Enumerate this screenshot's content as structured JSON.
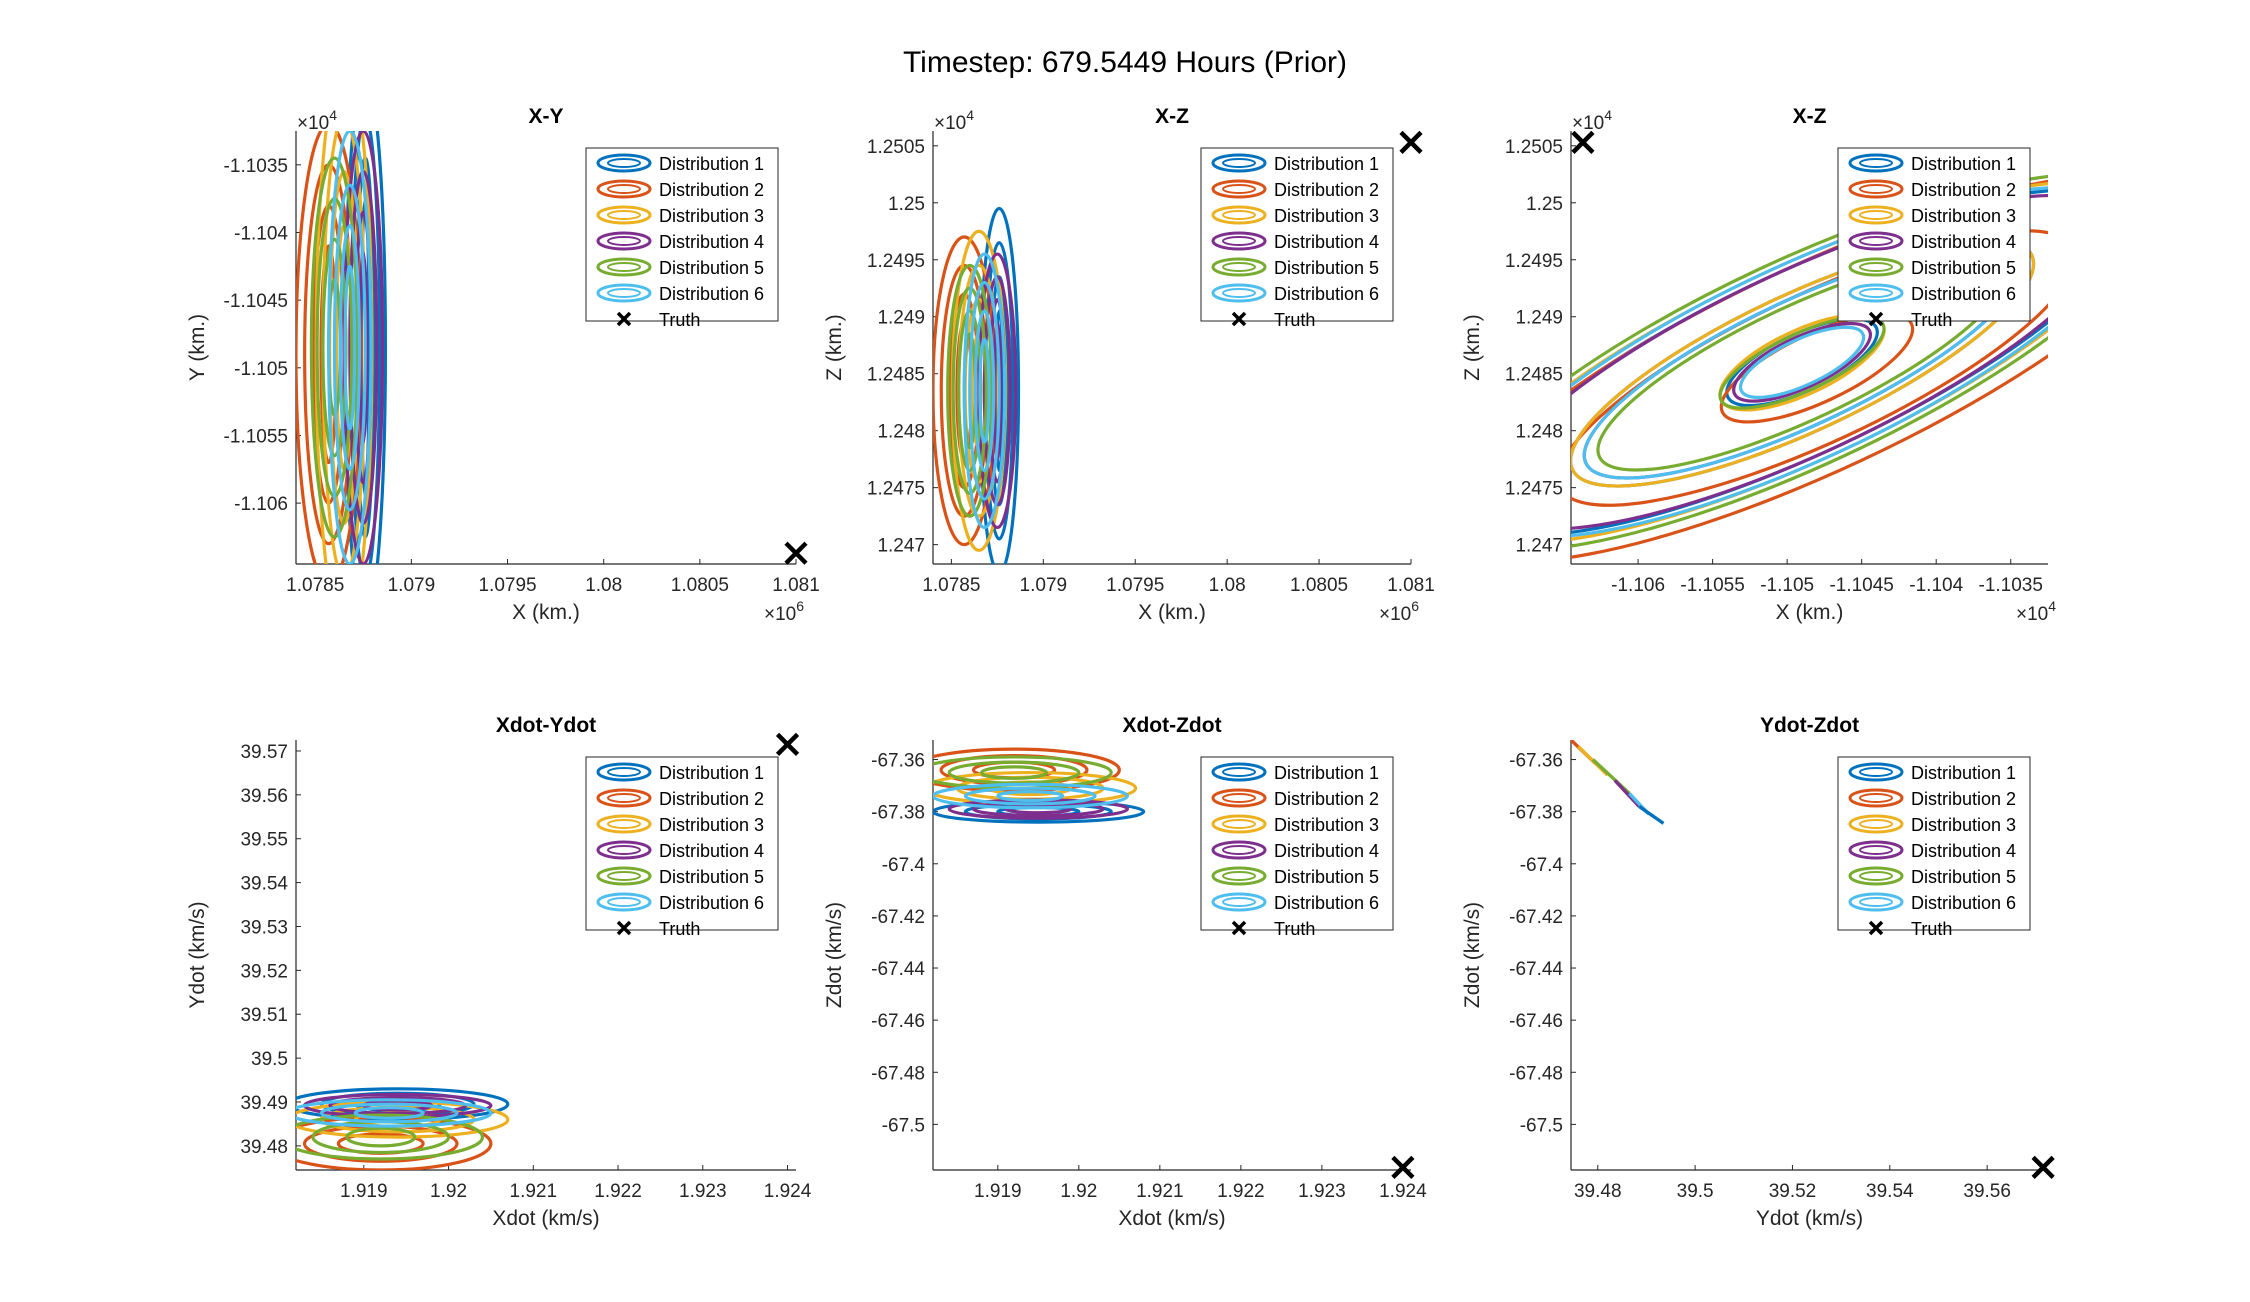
{
  "figure_title": "Timestep: 679.5449 Hours (Prior)",
  "colors": {
    "Distribution 1": "#0072BD",
    "Distribution 2": "#D95319",
    "Distribution 3": "#EDB120",
    "Distribution 4": "#7E2F8E",
    "Distribution 5": "#77AC30",
    "Distribution 6": "#4DBEEE",
    "Truth": "#000000"
  },
  "chart_data": [
    {
      "type": "scatter",
      "title": "X-Y",
      "xlabel": "X (km.)",
      "ylabel": "Y (km.)",
      "x_exponent": "6",
      "y_exponent": "4",
      "xlim": [
        1.0784,
        1.081
      ],
      "ylim": [
        -1.10645,
        -1.10325
      ],
      "xticks": [
        "1.0785",
        "1.079",
        "1.0795",
        "1.08",
        "1.0805",
        "1.081"
      ],
      "xtick_values": [
        1.0785,
        1.079,
        1.0795,
        1.08,
        1.0805,
        1.081
      ],
      "yticks": [
        "-1.1035",
        "-1.104",
        "-1.1045",
        "-1.105",
        "-1.1055",
        "-1.106"
      ],
      "ytick_values": [
        -1.1035,
        -1.104,
        -1.1045,
        -1.105,
        -1.1055,
        -1.106
      ],
      "legend": [
        "Distribution 1",
        "Distribution 2",
        "Distribution 3",
        "Distribution 4",
        "Distribution 5",
        "Distribution 6",
        "Truth"
      ],
      "legend_location": "top-right",
      "truth": [
        1.081,
        -1.10637
      ],
      "ellipses": [
        {
          "series": "Distribution 1",
          "cx": 1.07876,
          "cy": -1.10485,
          "rx": [
            0.000105,
            7.5e-05,
            4.5e-05,
            2e-05
          ],
          "ry": [
            0.002,
            0.0017,
            0.0014,
            0.0011
          ],
          "tilt": 0
        },
        {
          "series": "Distribution 2",
          "cx": 1.07857,
          "cy": -1.1049,
          "rx": [
            0.00017,
            0.000125,
            8e-05,
            4e-05
          ],
          "ry": [
            0.0017,
            0.0014,
            0.0011,
            0.0008
          ],
          "tilt": 0
        },
        {
          "series": "Distribution 3",
          "cx": 1.07865,
          "cy": -1.10485,
          "rx": [
            0.000145,
            0.00011,
            7.5e-05,
            4e-05
          ],
          "ry": [
            0.0021,
            0.0017,
            0.0013,
            0.0009
          ],
          "tilt": 0
        },
        {
          "series": "Distribution 4",
          "cx": 1.07875,
          "cy": -1.10485,
          "rx": [
            0.0001,
            7e-05,
            4e-05,
            1.8e-05
          ],
          "ry": [
            0.0016,
            0.0013,
            0.001,
            0.0007
          ],
          "tilt": 0
        },
        {
          "series": "Distribution 5",
          "cx": 1.0786,
          "cy": -1.10485,
          "rx": [
            0.00012,
            9e-05,
            6e-05,
            3e-05
          ],
          "ry": [
            0.0014,
            0.0011,
            0.0008,
            0.0005
          ],
          "tilt": 0
        },
        {
          "series": "Distribution 6",
          "cx": 1.07868,
          "cy": -1.10485,
          "rx": [
            0.00011,
            8e-05,
            5e-05,
            2.5e-05
          ],
          "ry": [
            0.0016,
            0.0012,
            0.0009,
            0.0006
          ],
          "tilt": 0
        }
      ]
    },
    {
      "type": "scatter",
      "title": "X-Z",
      "xlabel": "X (km.)",
      "ylabel": "Z (km.)",
      "x_exponent": "6",
      "y_exponent": "4",
      "xlim": [
        1.0784,
        1.081
      ],
      "ylim": [
        1.24683,
        1.25063
      ],
      "xticks": [
        "1.0785",
        "1.079",
        "1.0795",
        "1.08",
        "1.0805",
        "1.081"
      ],
      "xtick_values": [
        1.0785,
        1.079,
        1.0795,
        1.08,
        1.0805,
        1.081
      ],
      "yticks": [
        "1.247",
        "1.2475",
        "1.248",
        "1.2485",
        "1.249",
        "1.2495",
        "1.25",
        "1.2505"
      ],
      "ytick_values": [
        1.247,
        1.2475,
        1.248,
        1.2485,
        1.249,
        1.2495,
        1.25,
        1.2505
      ],
      "legend": [
        "Distribution 1",
        "Distribution 2",
        "Distribution 3",
        "Distribution 4",
        "Distribution 5",
        "Distribution 6",
        "Truth"
      ],
      "legend_location": "top-right",
      "truth": [
        1.081,
        1.25053
      ],
      "ellipses": [
        {
          "series": "Distribution 1",
          "cx": 1.07876,
          "cy": 1.24835,
          "rx": [
            0.000105,
            7.5e-05,
            4.5e-05,
            2e-05
          ],
          "ry": [
            0.0016,
            0.0013,
            0.001,
            0.0007
          ],
          "tilt": 0
        },
        {
          "series": "Distribution 2",
          "cx": 1.07857,
          "cy": 1.24835,
          "rx": [
            0.00017,
            0.000125,
            8e-05,
            4e-05
          ],
          "ry": [
            0.00135,
            0.0011,
            0.00085,
            0.0006
          ],
          "tilt": 0
        },
        {
          "series": "Distribution 3",
          "cx": 1.07865,
          "cy": 1.24835,
          "rx": [
            0.000145,
            0.00011,
            7.5e-05,
            4e-05
          ],
          "ry": [
            0.0014,
            0.0011,
            0.0008,
            0.0005
          ],
          "tilt": 0
        },
        {
          "series": "Distribution 4",
          "cx": 1.07875,
          "cy": 1.24835,
          "rx": [
            0.0001,
            7e-05,
            4e-05,
            1.8e-05
          ],
          "ry": [
            0.0012,
            0.001,
            0.0008,
            0.0006
          ],
          "tilt": 0
        },
        {
          "series": "Distribution 5",
          "cx": 1.0786,
          "cy": 1.24835,
          "rx": [
            0.00012,
            9e-05,
            6e-05,
            3e-05
          ],
          "ry": [
            0.0011,
            0.0009,
            0.0007,
            0.0005
          ],
          "tilt": 0
        },
        {
          "series": "Distribution 6",
          "cx": 1.07868,
          "cy": 1.24835,
          "rx": [
            0.00011,
            8e-05,
            5e-05,
            2.5e-05
          ],
          "ry": [
            0.0012,
            0.00095,
            0.0007,
            0.00045
          ],
          "tilt": 0
        }
      ]
    },
    {
      "type": "scatter",
      "title": "X-Z",
      "xlabel": "X (km.)",
      "ylabel": "Z (km.)",
      "x_exponent": "4",
      "y_exponent": "4",
      "xlim": [
        -1.10645,
        -1.10325
      ],
      "ylim": [
        1.24683,
        1.25063
      ],
      "xticks": [
        "-1.106",
        "-1.1055",
        "-1.105",
        "-1.1045",
        "-1.104",
        "-1.1035"
      ],
      "xtick_values": [
        -1.106,
        -1.1055,
        -1.105,
        -1.1045,
        -1.104,
        -1.1035
      ],
      "yticks": [
        "1.247",
        "1.2475",
        "1.248",
        "1.2485",
        "1.249",
        "1.2495",
        "1.25",
        "1.2505"
      ],
      "ytick_values": [
        1.247,
        1.2475,
        1.248,
        1.2485,
        1.249,
        1.2495,
        1.25,
        1.2505
      ],
      "legend": [
        "Distribution 1",
        "Distribution 2",
        "Distribution 3",
        "Distribution 4",
        "Distribution 5",
        "Distribution 6",
        "Truth"
      ],
      "legend_location": "top-right",
      "truth": [
        -1.10637,
        1.25053
      ],
      "ellipses": [
        {
          "series": "Distribution 1",
          "cx": -1.1049,
          "cy": 1.2486,
          "rx": [
            0.0024,
            0.0017,
            0.00055
          ],
          "ry": [
            0.0008,
            0.0006,
            0.00025
          ],
          "tilt": -25
        },
        {
          "series": "Distribution 2",
          "cx": -1.1048,
          "cy": 1.24855,
          "rx": [
            0.0027,
            0.0019,
            0.0007
          ],
          "ry": [
            0.0009,
            0.00065,
            0.0003
          ],
          "tilt": -25
        },
        {
          "series": "Distribution 3",
          "cx": -1.1049,
          "cy": 1.2486,
          "rx": [
            0.0025,
            0.0017,
            0.0006
          ],
          "ry": [
            0.00085,
            0.0006,
            0.00028
          ],
          "tilt": -25
        },
        {
          "series": "Distribution 4",
          "cx": -1.1049,
          "cy": 1.2486,
          "rx": [
            0.0023,
            0.0016,
            0.0005
          ],
          "ry": [
            0.0008,
            0.00055,
            0.00022
          ],
          "tilt": -25
        },
        {
          "series": "Distribution 5",
          "cx": -1.1049,
          "cy": 1.2486,
          "rx": [
            0.0026,
            0.0015,
            0.0006
          ],
          "ry": [
            0.0009,
            0.0005,
            0.00025
          ],
          "tilt": -25
        },
        {
          "series": "Distribution 6",
          "cx": -1.1049,
          "cy": 1.2486,
          "rx": [
            0.0024,
            0.0016,
            0.00045
          ],
          "ry": [
            0.00085,
            0.00055,
            0.0002
          ],
          "tilt": -25
        }
      ]
    },
    {
      "type": "scatter",
      "title": "Xdot-Ydot",
      "xlabel": "Xdot (km/s)",
      "ylabel": "Ydot (km/s)",
      "xlim": [
        1.9182,
        1.9241
      ],
      "ylim": [
        39.4745,
        39.5725
      ],
      "xticks": [
        "1.919",
        "1.92",
        "1.921",
        "1.922",
        "1.923",
        "1.924"
      ],
      "xtick_values": [
        1.919,
        1.92,
        1.921,
        1.922,
        1.923,
        1.924
      ],
      "yticks": [
        "39.48",
        "39.49",
        "39.5",
        "39.51",
        "39.52",
        "39.53",
        "39.54",
        "39.55",
        "39.56",
        "39.57"
      ],
      "ytick_values": [
        39.48,
        39.49,
        39.5,
        39.51,
        39.52,
        39.53,
        39.54,
        39.55,
        39.56,
        39.57
      ],
      "legend": [
        "Distribution 1",
        "Distribution 2",
        "Distribution 3",
        "Distribution 4",
        "Distribution 5",
        "Distribution 6",
        "Truth"
      ],
      "legend_location": "top-right",
      "truth": [
        1.924,
        39.5715
      ],
      "ellipses": [
        {
          "series": "Distribution 1",
          "cx": 1.9194,
          "cy": 39.4895,
          "rx": [
            0.0013,
            0.0009,
            0.0005
          ],
          "ry": [
            0.0035,
            0.0025,
            0.0015
          ],
          "tilt": 0
        },
        {
          "series": "Distribution 2",
          "cx": 1.9192,
          "cy": 39.4805,
          "rx": [
            0.0013,
            0.0009,
            0.0005
          ],
          "ry": [
            0.006,
            0.004,
            0.0022
          ],
          "tilt": 0
        },
        {
          "series": "Distribution 3",
          "cx": 1.9194,
          "cy": 39.486,
          "rx": [
            0.0013,
            0.0009,
            0.0005
          ],
          "ry": [
            0.004,
            0.0028,
            0.0016
          ],
          "tilt": 0
        },
        {
          "series": "Distribution 4",
          "cx": 1.9194,
          "cy": 39.4892,
          "rx": [
            0.0011,
            0.0008,
            0.0004
          ],
          "ry": [
            0.0025,
            0.0018,
            0.001
          ],
          "tilt": 0
        },
        {
          "series": "Distribution 5",
          "cx": 1.9192,
          "cy": 39.482,
          "rx": [
            0.0012,
            0.0008,
            0.0004
          ],
          "ry": [
            0.005,
            0.0035,
            0.002
          ],
          "tilt": 0
        },
        {
          "series": "Distribution 6",
          "cx": 1.9193,
          "cy": 39.4875,
          "rx": [
            0.0012,
            0.0008,
            0.0004
          ],
          "ry": [
            0.003,
            0.002,
            0.0012
          ],
          "tilt": 0
        }
      ]
    },
    {
      "type": "scatter",
      "title": "Xdot-Zdot",
      "xlabel": "Xdot (km/s)",
      "ylabel": "Zdot (km/s)",
      "xlim": [
        1.9182,
        1.9241
      ],
      "ylim": [
        -67.5175,
        -67.3525
      ],
      "xticks": [
        "1.919",
        "1.92",
        "1.921",
        "1.922",
        "1.923",
        "1.924"
      ],
      "xtick_values": [
        1.919,
        1.92,
        1.921,
        1.922,
        1.923,
        1.924
      ],
      "yticks": [
        "-67.36",
        "-67.38",
        "-67.4",
        "-67.42",
        "-67.44",
        "-67.46",
        "-67.48",
        "-67.5"
      ],
      "ytick_values": [
        -67.36,
        -67.38,
        -67.4,
        -67.42,
        -67.44,
        -67.46,
        -67.48,
        -67.5
      ],
      "legend": [
        "Distribution 1",
        "Distribution 2",
        "Distribution 3",
        "Distribution 4",
        "Distribution 5",
        "Distribution 6",
        "Truth"
      ],
      "legend_location": "top-right",
      "truth": [
        1.924,
        -67.5165
      ],
      "ellipses": [
        {
          "series": "Distribution 1",
          "cx": 1.9195,
          "cy": -67.38,
          "rx": [
            0.0013,
            0.0009,
            0.0005
          ],
          "ry": [
            0.004,
            0.0028,
            0.0016
          ],
          "tilt": 0
        },
        {
          "series": "Distribution 2",
          "cx": 1.9192,
          "cy": -67.364,
          "rx": [
            0.0013,
            0.0009,
            0.0005
          ],
          "ry": [
            0.008,
            0.0055,
            0.003
          ],
          "tilt": 0
        },
        {
          "series": "Distribution 3",
          "cx": 1.9194,
          "cy": -67.371,
          "rx": [
            0.0013,
            0.0009,
            0.0005
          ],
          "ry": [
            0.006,
            0.0042,
            0.0024
          ],
          "tilt": 0
        },
        {
          "series": "Distribution 4",
          "cx": 1.9195,
          "cy": -67.379,
          "rx": [
            0.0011,
            0.0008,
            0.0004
          ],
          "ry": [
            0.0035,
            0.0025,
            0.0014
          ],
          "tilt": 0
        },
        {
          "series": "Distribution 5",
          "cx": 1.9192,
          "cy": -67.365,
          "rx": [
            0.0012,
            0.0008,
            0.0004
          ],
          "ry": [
            0.006,
            0.004,
            0.0022
          ],
          "tilt": 0
        },
        {
          "series": "Distribution 6",
          "cx": 1.9194,
          "cy": -67.374,
          "rx": [
            0.0012,
            0.0008,
            0.0004
          ],
          "ry": [
            0.0045,
            0.003,
            0.0017
          ],
          "tilt": 0
        }
      ]
    },
    {
      "type": "line",
      "title": "Ydot-Zdot",
      "xlabel": "Ydot (km/s)",
      "ylabel": "Zdot (km/s)",
      "xlim": [
        39.4745,
        39.5725
      ],
      "ylim": [
        -67.5175,
        -67.3525
      ],
      "xticks": [
        "39.48",
        "39.5",
        "39.52",
        "39.54",
        "39.56"
      ],
      "xtick_values": [
        39.48,
        39.5,
        39.52,
        39.54,
        39.56
      ],
      "yticks": [
        "-67.36",
        "-67.38",
        "-67.4",
        "-67.42",
        "-67.44",
        "-67.46",
        "-67.48",
        "-67.5"
      ],
      "ytick_values": [
        -67.36,
        -67.38,
        -67.4,
        -67.42,
        -67.44,
        -67.46,
        -67.48,
        -67.5
      ],
      "legend": [
        "Distribution 1",
        "Distribution 2",
        "Distribution 3",
        "Distribution 4",
        "Distribution 5",
        "Distribution 6",
        "Truth"
      ],
      "legend_location": "top-right",
      "truth": [
        39.5715,
        -67.5165
      ],
      "segments": [
        {
          "series": "Distribution 2",
          "x": [
            39.4745,
            39.4795
          ],
          "y": [
            -67.3525,
            -67.3615
          ]
        },
        {
          "series": "Distribution 3",
          "x": [
            39.476,
            39.482
          ],
          "y": [
            -67.355,
            -67.366
          ]
        },
        {
          "series": "Distribution 5",
          "x": [
            39.479,
            39.4865
          ],
          "y": [
            -67.36,
            -67.373
          ]
        },
        {
          "series": "Distribution 4",
          "x": [
            39.4835,
            39.4885
          ],
          "y": [
            -67.368,
            -67.378
          ]
        },
        {
          "series": "Distribution 6",
          "x": [
            39.4865,
            39.4905
          ],
          "y": [
            -67.373,
            -67.381
          ]
        },
        {
          "series": "Distribution 1",
          "x": [
            39.4885,
            39.4935
          ],
          "y": [
            -67.378,
            -67.3845
          ]
        }
      ]
    }
  ]
}
